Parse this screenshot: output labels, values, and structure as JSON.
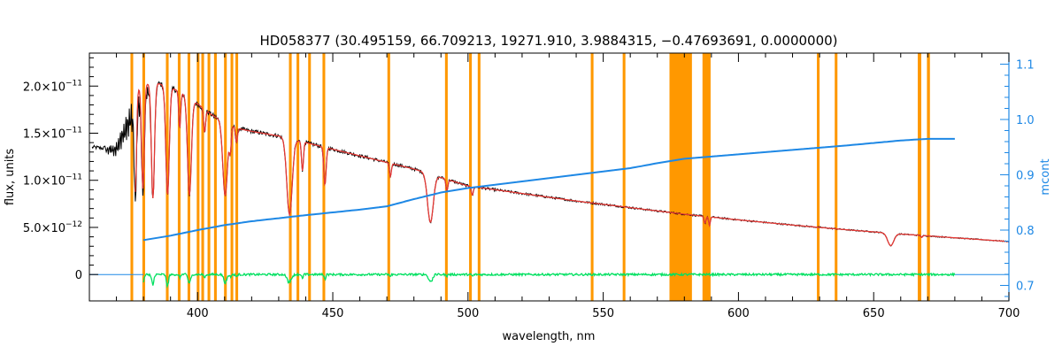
{
  "chart_data": {
    "type": "line",
    "title": "HD058377    (30.495159, 66.709213, 19271.910, 3.9884315, −0.47693691, 0.0000000)",
    "xlabel": "wavelength, nm",
    "ylabel": "flux, units",
    "y2label": "mcont",
    "xlim": [
      360,
      700
    ],
    "ylim": [
      -2.8e-12,
      2.35e-11
    ],
    "y2lim": [
      0.672,
      1.12
    ],
    "x_ticks": [
      400,
      450,
      500,
      550,
      600,
      650,
      700
    ],
    "x_tick_labels": [
      "400",
      "450",
      "500",
      "550",
      "600",
      "650",
      "700"
    ],
    "y_ticks": [
      0,
      5e-12,
      1e-11,
      1.5e-11,
      2e-11
    ],
    "y_tick_labels": [
      {
        "mantissa": "0",
        "exp": ""
      },
      {
        "mantissa": "5.0×10",
        "exp": "−12"
      },
      {
        "mantissa": "1.0×10",
        "exp": "−11"
      },
      {
        "mantissa": "1.5×10",
        "exp": "−11"
      },
      {
        "mantissa": "2.0×10",
        "exp": "−11"
      }
    ],
    "y2_ticks": [
      0.7,
      0.8,
      0.9,
      1.0,
      1.1
    ],
    "y2_tick_labels": [
      "0.7",
      "0.8",
      "0.9",
      "1.0",
      "1.1"
    ],
    "masked_regions": [
      [
        375.2,
        376.2
      ],
      [
        379.6,
        380.6
      ],
      [
        388.3,
        389.3
      ],
      [
        392.7,
        393.7
      ],
      [
        396.3,
        397.3
      ],
      [
        399.7,
        400.7
      ],
      [
        401.4,
        402.4
      ],
      [
        403.7,
        404.7
      ],
      [
        406.1,
        407.1
      ],
      [
        409.8,
        410.8
      ],
      [
        412.2,
        413.2
      ],
      [
        414.0,
        415.0
      ],
      [
        433.8,
        434.8
      ],
      [
        436.6,
        437.6
      ],
      [
        440.9,
        441.9
      ],
      [
        446.2,
        447.2
      ],
      [
        470.2,
        471.2
      ],
      [
        491.5,
        492.5
      ],
      [
        500.4,
        501.4
      ],
      [
        503.6,
        504.6
      ],
      [
        545.4,
        546.4
      ],
      [
        557.2,
        558.2
      ],
      [
        574.5,
        582.8
      ],
      [
        586.7,
        589.7
      ],
      [
        629.0,
        630.0
      ],
      [
        635.6,
        636.6
      ],
      [
        666.3,
        667.6
      ],
      [
        669.7,
        670.8
      ]
    ],
    "absorption_lines": [
      {
        "wl": 377.0,
        "depth": 0.55,
        "width": 0.6
      },
      {
        "wl": 379.8,
        "depth": 0.55,
        "width": 0.7
      },
      {
        "wl": 383.5,
        "depth": 0.6,
        "width": 0.8
      },
      {
        "wl": 388.9,
        "depth": 0.58,
        "width": 0.9
      },
      {
        "wl": 393.4,
        "depth": 0.2,
        "width": 0.5
      },
      {
        "wl": 397.0,
        "depth": 0.55,
        "width": 1.0
      },
      {
        "wl": 402.6,
        "depth": 0.14,
        "width": 0.5
      },
      {
        "wl": 410.2,
        "depth": 0.48,
        "width": 1.2
      },
      {
        "wl": 412.1,
        "depth": 0.16,
        "width": 0.5
      },
      {
        "wl": 414.4,
        "depth": 0.1,
        "width": 0.5
      },
      {
        "wl": 434.0,
        "depth": 0.56,
        "width": 1.4
      },
      {
        "wl": 438.8,
        "depth": 0.22,
        "width": 0.5
      },
      {
        "wl": 447.1,
        "depth": 0.3,
        "width": 0.6
      },
      {
        "wl": 471.3,
        "depth": 0.12,
        "width": 0.5
      },
      {
        "wl": 486.1,
        "depth": 0.48,
        "width": 1.5
      },
      {
        "wl": 492.2,
        "depth": 0.12,
        "width": 0.5
      },
      {
        "wl": 501.6,
        "depth": 0.1,
        "width": 0.5
      },
      {
        "wl": 587.6,
        "depth": 0.12,
        "width": 0.5
      },
      {
        "wl": 589.3,
        "depth": 0.15,
        "width": 0.4
      },
      {
        "wl": 656.3,
        "depth": 0.3,
        "width": 1.6
      },
      {
        "wl": 667.8,
        "depth": 0.05,
        "width": 0.4
      }
    ],
    "series": [
      {
        "role": "observed",
        "color": "#000000",
        "x": [
          362,
          365,
          370,
          375,
          380,
          385,
          390,
          395,
          400,
          405,
          410,
          415,
          420,
          430,
          440,
          450,
          460,
          470,
          480,
          490,
          500,
          520,
          540,
          560,
          580,
          600,
          620,
          640,
          660,
          680,
          700
        ],
        "y": [
          1.35e-11,
          1.34e-11,
          1.4e-11,
          1.8e-11,
          2.02e-11,
          2.03e-11,
          1.99e-11,
          1.91e-11,
          1.81e-11,
          1.7e-11,
          1.61e-11,
          1.55e-11,
          1.52e-11,
          1.47e-11,
          1.4e-11,
          1.33e-11,
          1.26e-11,
          1.19e-11,
          1.12e-11,
          1.03e-11,
          9.4e-12,
          8.6e-12,
          7.8e-12,
          7.1e-12,
          6.4e-12,
          5.8e-12,
          5.25e-12,
          4.75e-12,
          4.3e-12,
          3.9e-12,
          3.5e-12
        ]
      },
      {
        "role": "model",
        "color": "#e53935",
        "x": [
          377,
          380,
          385,
          390,
          395,
          400,
          405,
          410,
          415,
          420,
          430,
          440,
          450,
          460,
          470,
          480,
          490,
          500,
          520,
          540,
          560,
          580,
          600,
          620,
          640,
          660,
          680,
          700
        ],
        "y": [
          1.95e-11,
          2.02e-11,
          2.03e-11,
          1.99e-11,
          1.91e-11,
          1.81e-11,
          1.7e-11,
          1.61e-11,
          1.55e-11,
          1.52e-11,
          1.47e-11,
          1.4e-11,
          1.33e-11,
          1.26e-11,
          1.19e-11,
          1.12e-11,
          1.03e-11,
          9.4e-12,
          8.6e-12,
          7.8e-12,
          7.1e-12,
          6.4e-12,
          5.8e-12,
          5.25e-12,
          4.75e-12,
          4.3e-12,
          3.9e-12,
          3.5e-12
        ]
      },
      {
        "role": "continuum",
        "axis": "right",
        "color": "#1e88e5",
        "x": [
          380,
          390,
          400,
          410,
          420,
          440,
          460,
          470,
          480,
          490,
          500,
          520,
          540,
          560,
          570,
          580,
          600,
          620,
          640,
          660,
          670,
          680
        ],
        "y": [
          0.782,
          0.79,
          0.8,
          0.809,
          0.816,
          0.827,
          0.837,
          0.843,
          0.856,
          0.868,
          0.876,
          0.888,
          0.9,
          0.912,
          0.921,
          0.929,
          0.937,
          0.945,
          0.953,
          0.962,
          0.965,
          0.965
        ]
      },
      {
        "role": "residual",
        "color": "#00e060",
        "x": [
          380,
          680
        ],
        "y": [
          0,
          0
        ]
      }
    ]
  }
}
